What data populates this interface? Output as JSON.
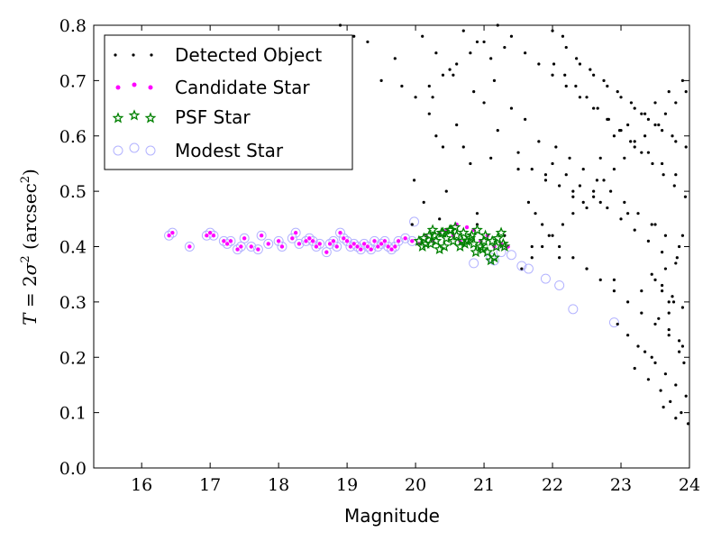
{
  "chart_data": {
    "type": "scatter",
    "xlabel": "Magnitude",
    "ylabel_parts": {
      "t": "T",
      "eq": " = 2",
      "sigma": "σ",
      "sq": "2",
      "units": " (arcsec",
      "sq2": "2",
      "close": ")"
    },
    "xlim": [
      15.3,
      24
    ],
    "ylim": [
      0,
      0.8
    ],
    "x_ticks": [
      16,
      17,
      18,
      19,
      20,
      21,
      22,
      23,
      24
    ],
    "y_ticks": [
      0.0,
      0.1,
      0.2,
      0.3,
      0.4,
      0.5,
      0.6,
      0.7,
      0.8
    ],
    "x_tick_labels": [
      "16",
      "17",
      "18",
      "19",
      "20",
      "21",
      "22",
      "23",
      "24"
    ],
    "y_tick_labels": [
      "0.0",
      "0.1",
      "0.2",
      "0.3",
      "0.4",
      "0.5",
      "0.6",
      "0.7",
      "0.8"
    ],
    "legend_position": "top-left",
    "colors": {
      "detected": "#000000",
      "candidate": "#ff00ff",
      "psf": "#008000",
      "modest": "#b3b3ff"
    },
    "series": [
      {
        "name": "Detected Object",
        "marker": "dot",
        "x": [
          20.1,
          20.3,
          20.5,
          20.7,
          20.9,
          21.1,
          21.3,
          20.2,
          20.6,
          21.0,
          20.4,
          20.8,
          21.2,
          19.98,
          20.12,
          20.45,
          20.9,
          20.35,
          19.95,
          19.8,
          20.25,
          20.55,
          20.85,
          21.15,
          21.4,
          21.6,
          21.8,
          21.5,
          21.7,
          21.9,
          22.1,
          22.3,
          22.5,
          22.7,
          22.9,
          23.1,
          23.3,
          23.5,
          23.7,
          23.9,
          22.0,
          22.2,
          22.4,
          22.6,
          22.8,
          23.0,
          23.2,
          23.4,
          23.6,
          23.8,
          22.05,
          22.25,
          22.45,
          22.65,
          22.85,
          23.05,
          23.25,
          23.45,
          23.65,
          23.85,
          22.15,
          22.35,
          22.55,
          22.75,
          22.95,
          23.15,
          23.35,
          23.55,
          23.75,
          23.95,
          21.65,
          21.75,
          21.85,
          21.95,
          22.1,
          22.3,
          22.5,
          22.7,
          22.9,
          23.1,
          23.3,
          23.5,
          23.7,
          23.9,
          22.0,
          22.2,
          22.4,
          22.6,
          22.8,
          23.0,
          23.2,
          23.4,
          23.6,
          23.8,
          21.55,
          21.7,
          21.85,
          22.0,
          22.15,
          22.3,
          22.45,
          22.6,
          22.75,
          22.9,
          23.05,
          23.2,
          23.35,
          23.5,
          23.65,
          23.8,
          23.95,
          22.02,
          22.18,
          22.34,
          22.5,
          22.66,
          22.82,
          22.98,
          23.14,
          23.3,
          23.46,
          23.62,
          23.78,
          23.94,
          21.6,
          21.8,
          22.0,
          22.2,
          22.4,
          22.6,
          22.8,
          23.0,
          23.2,
          23.4,
          23.6,
          23.8,
          21.4,
          21.2,
          21.0,
          20.8,
          20.6,
          20.4,
          20.2,
          20.0,
          19.7,
          19.3,
          18.9,
          18.7,
          19.1,
          19.5,
          20.3,
          20.7,
          21.1,
          21.5,
          21.9,
          22.3,
          22.7,
          23.1,
          23.5,
          23.9,
          20.9,
          21.3,
          21.7,
          22.1,
          22.5,
          22.9,
          23.3,
          23.7,
          23.45,
          23.6,
          23.75,
          23.9,
          23.55,
          23.7,
          23.85,
          23.35,
          23.5,
          23.65,
          23.8,
          23.95,
          23.2,
          23.4,
          23.58,
          23.72,
          23.88,
          22.95,
          23.1,
          23.25,
          23.45,
          23.62,
          23.8,
          23.98,
          23.85,
          23.92,
          23.7,
          23.77,
          23.6,
          23.5,
          23.65,
          23.82
        ],
        "y": [
          0.78,
          0.75,
          0.72,
          0.79,
          0.77,
          0.74,
          0.76,
          0.64,
          0.62,
          0.66,
          0.58,
          0.55,
          0.61,
          0.52,
          0.48,
          0.5,
          0.46,
          0.45,
          0.44,
          0.69,
          0.67,
          0.71,
          0.68,
          0.7,
          0.65,
          0.63,
          0.59,
          0.57,
          0.54,
          0.53,
          0.51,
          0.49,
          0.47,
          0.56,
          0.6,
          0.62,
          0.64,
          0.66,
          0.68,
          0.7,
          0.79,
          0.76,
          0.73,
          0.71,
          0.69,
          0.67,
          0.65,
          0.63,
          0.61,
          0.59,
          0.58,
          0.56,
          0.54,
          0.52,
          0.5,
          0.48,
          0.46,
          0.44,
          0.42,
          0.4,
          0.78,
          0.74,
          0.72,
          0.7,
          0.68,
          0.66,
          0.64,
          0.62,
          0.6,
          0.58,
          0.48,
          0.46,
          0.44,
          0.42,
          0.4,
          0.38,
          0.36,
          0.34,
          0.32,
          0.3,
          0.28,
          0.26,
          0.24,
          0.22,
          0.55,
          0.53,
          0.51,
          0.49,
          0.47,
          0.45,
          0.43,
          0.41,
          0.39,
          0.37,
          0.36,
          0.38,
          0.4,
          0.42,
          0.44,
          0.46,
          0.48,
          0.5,
          0.52,
          0.54,
          0.56,
          0.58,
          0.6,
          0.62,
          0.64,
          0.66,
          0.68,
          0.73,
          0.71,
          0.69,
          0.67,
          0.65,
          0.63,
          0.61,
          0.59,
          0.57,
          0.55,
          0.53,
          0.51,
          0.49,
          0.75,
          0.73,
          0.71,
          0.69,
          0.67,
          0.65,
          0.63,
          0.61,
          0.59,
          0.57,
          0.55,
          0.53,
          0.78,
          0.8,
          0.77,
          0.75,
          0.73,
          0.71,
          0.69,
          0.67,
          0.74,
          0.77,
          0.8,
          0.72,
          0.78,
          0.7,
          0.6,
          0.58,
          0.56,
          0.54,
          0.52,
          0.5,
          0.48,
          0.46,
          0.44,
          0.42,
          0.44,
          0.42,
          0.4,
          0.38,
          0.36,
          0.34,
          0.32,
          0.3,
          0.35,
          0.33,
          0.31,
          0.29,
          0.27,
          0.25,
          0.23,
          0.21,
          0.19,
          0.17,
          0.15,
          0.13,
          0.18,
          0.16,
          0.14,
          0.12,
          0.1,
          0.26,
          0.24,
          0.22,
          0.2,
          0.11,
          0.09,
          0.08,
          0.21,
          0.19,
          0.28,
          0.3,
          0.32,
          0.34,
          0.36,
          0.38
        ]
      },
      {
        "name": "Candidate Star",
        "marker": "small-circle",
        "x": [
          16.4,
          16.45,
          16.7,
          16.95,
          17.0,
          17.05,
          17.2,
          17.25,
          17.3,
          17.4,
          17.45,
          17.5,
          17.6,
          17.7,
          17.75,
          17.85,
          18.0,
          18.05,
          18.2,
          18.25,
          18.3,
          18.4,
          18.45,
          18.5,
          18.55,
          18.6,
          18.7,
          18.75,
          18.8,
          18.85,
          18.9,
          18.95,
          19.0,
          19.05,
          19.1,
          19.15,
          19.2,
          19.25,
          19.3,
          19.35,
          19.4,
          19.45,
          19.5,
          19.55,
          19.6,
          19.65,
          19.7,
          19.75,
          19.85,
          19.95,
          20.05,
          20.15,
          20.25,
          20.35,
          20.45,
          20.55,
          20.6,
          20.65,
          20.75,
          20.85,
          20.95,
          21.05,
          21.15,
          21.25,
          21.35
        ],
        "y": [
          0.42,
          0.425,
          0.4,
          0.42,
          0.425,
          0.42,
          0.41,
          0.405,
          0.41,
          0.395,
          0.4,
          0.415,
          0.4,
          0.395,
          0.42,
          0.405,
          0.41,
          0.4,
          0.415,
          0.425,
          0.405,
          0.41,
          0.415,
          0.41,
          0.4,
          0.405,
          0.39,
          0.405,
          0.41,
          0.4,
          0.425,
          0.415,
          0.41,
          0.4,
          0.405,
          0.4,
          0.395,
          0.405,
          0.4,
          0.395,
          0.41,
          0.4,
          0.405,
          0.41,
          0.4,
          0.395,
          0.4,
          0.41,
          0.415,
          0.41,
          0.405,
          0.42,
          0.41,
          0.425,
          0.43,
          0.42,
          0.44,
          0.41,
          0.435,
          0.43,
          0.41,
          0.42,
          0.4,
          0.405,
          0.4
        ]
      },
      {
        "name": "PSF Star",
        "marker": "star",
        "x": [
          20.05,
          20.1,
          20.15,
          20.2,
          20.25,
          20.3,
          20.35,
          20.4,
          20.45,
          20.5,
          20.55,
          20.6,
          20.65,
          20.7,
          20.75,
          20.8,
          20.85,
          20.9,
          20.95,
          21.0,
          21.05,
          21.1,
          21.15,
          21.2,
          21.25,
          21.3,
          20.12,
          20.28,
          20.42,
          20.58,
          20.72,
          20.88,
          21.02,
          21.18,
          20.22,
          20.38,
          20.52,
          20.68,
          20.82,
          20.98,
          21.12,
          21.28
        ],
        "y": [
          0.41,
          0.4,
          0.405,
          0.42,
          0.43,
          0.41,
          0.395,
          0.425,
          0.415,
          0.43,
          0.41,
          0.42,
          0.4,
          0.425,
          0.41,
          0.415,
          0.405,
          0.43,
          0.4,
          0.41,
          0.39,
          0.375,
          0.38,
          0.415,
          0.425,
          0.4,
          0.415,
          0.42,
          0.4,
          0.435,
          0.405,
          0.39,
          0.42,
          0.4,
          0.405,
          0.425,
          0.43,
          0.41,
          0.42,
          0.395,
          0.41,
          0.405
        ]
      },
      {
        "name": "Modest Star",
        "marker": "circle",
        "x": [
          16.4,
          16.45,
          16.7,
          16.95,
          17.0,
          17.05,
          17.2,
          17.25,
          17.3,
          17.4,
          17.45,
          17.5,
          17.6,
          17.7,
          17.75,
          17.85,
          18.0,
          18.05,
          18.2,
          18.25,
          18.3,
          18.4,
          18.45,
          18.5,
          18.55,
          18.6,
          18.7,
          18.75,
          18.8,
          18.85,
          18.9,
          18.95,
          19.0,
          19.05,
          19.1,
          19.15,
          19.2,
          19.25,
          19.3,
          19.35,
          19.4,
          19.45,
          19.5,
          19.55,
          19.6,
          19.65,
          19.7,
          19.75,
          19.85,
          19.95,
          19.98,
          20.85,
          21.1,
          21.15,
          21.25,
          21.4,
          21.55,
          21.65,
          21.9,
          22.1,
          22.3,
          22.9
        ],
        "y": [
          0.42,
          0.425,
          0.4,
          0.42,
          0.425,
          0.42,
          0.41,
          0.405,
          0.41,
          0.395,
          0.4,
          0.415,
          0.4,
          0.395,
          0.42,
          0.405,
          0.41,
          0.4,
          0.415,
          0.425,
          0.405,
          0.41,
          0.415,
          0.41,
          0.4,
          0.405,
          0.39,
          0.405,
          0.41,
          0.4,
          0.425,
          0.415,
          0.41,
          0.4,
          0.405,
          0.4,
          0.395,
          0.405,
          0.4,
          0.395,
          0.41,
          0.4,
          0.405,
          0.41,
          0.4,
          0.395,
          0.4,
          0.41,
          0.415,
          0.41,
          0.445,
          0.37,
          0.38,
          0.375,
          0.39,
          0.385,
          0.365,
          0.36,
          0.342,
          0.33,
          0.287,
          0.263
        ]
      }
    ]
  }
}
